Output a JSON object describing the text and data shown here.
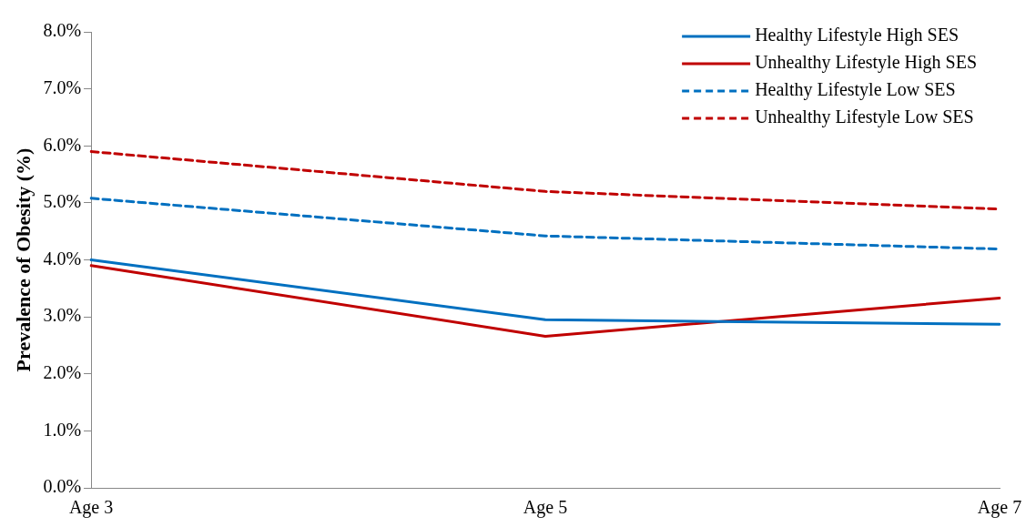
{
  "chart_data": {
    "type": "line",
    "ylabel": "Prevalence of Obesity (%)",
    "categories": [
      "Age 3",
      "Age 5",
      "Age 7"
    ],
    "series": [
      {
        "name": "Healthy Lifestyle High SES",
        "color": "#0070c0",
        "values": [
          4.0,
          2.95,
          2.87
        ],
        "line_style": "solid"
      },
      {
        "name": "Unhealthy Lifestyle High SES",
        "color": "#c00000",
        "values": [
          3.9,
          2.66,
          3.33
        ],
        "line_style": "solid"
      },
      {
        "name": "Healthy Lifestyle Low SES",
        "color": "#0070c0",
        "values": [
          5.08,
          4.42,
          4.19
        ],
        "line_style": "dashed"
      },
      {
        "name": "Unhealthy Lifestyle Low SES",
        "color": "#c00000",
        "values": [
          5.9,
          5.2,
          4.89
        ],
        "line_style": "dashed"
      }
    ],
    "ylim": [
      0,
      8
    ],
    "yticks": [
      {
        "value": 0,
        "label": "0.0%"
      },
      {
        "value": 1,
        "label": "1.0%"
      },
      {
        "value": 2,
        "label": "2.0%"
      },
      {
        "value": 3,
        "label": "3.0%"
      },
      {
        "value": 4,
        "label": "4.0%"
      },
      {
        "value": 5,
        "label": "5.0%"
      },
      {
        "value": 6,
        "label": "6.0%"
      },
      {
        "value": 7,
        "label": "7.0%"
      },
      {
        "value": 8,
        "label": "8.0%"
      }
    ],
    "grid": false,
    "legend": "top right",
    "marker": "none"
  }
}
